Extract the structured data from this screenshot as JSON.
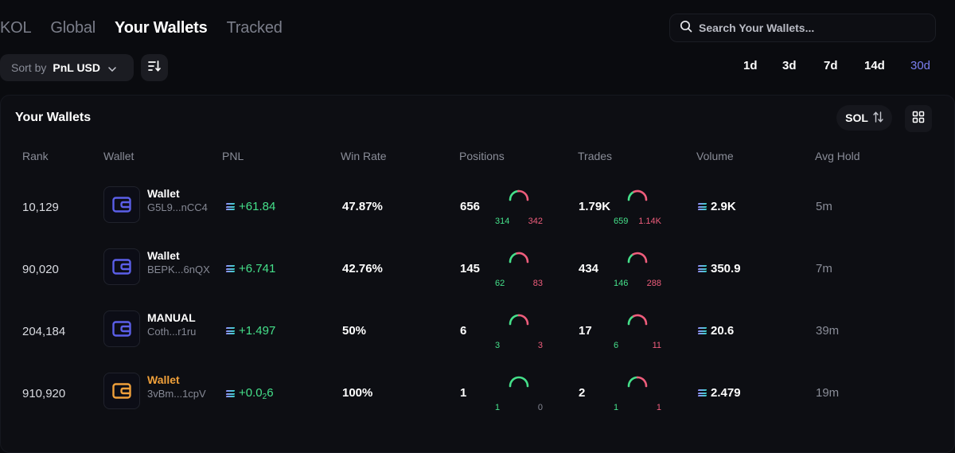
{
  "nav": {
    "tabs": [
      "KOL",
      "Global",
      "Your Wallets",
      "Tracked"
    ],
    "active": "Your Wallets"
  },
  "search": {
    "placeholder": "Search Your Wallets..."
  },
  "sort": {
    "label": "Sort by",
    "value": "PnL USD"
  },
  "periods": [
    "1d",
    "3d",
    "7d",
    "14d",
    "30d"
  ],
  "active_period": "30d",
  "panel": {
    "title": "Your Wallets",
    "currency_label": "SOL"
  },
  "columns": [
    "Rank",
    "Wallet",
    "PNL",
    "Win Rate",
    "Positions",
    "Trades",
    "Volume",
    "Avg Hold"
  ],
  "rows": [
    {
      "rank": "10,129",
      "name": "Wallet",
      "address": "G5L9...nCC4",
      "pnl": "+61.84",
      "win_rate": "47.87%",
      "positions": "656",
      "positions_win": "314",
      "positions_loss": "342",
      "trades": "1.79K",
      "trades_win": "659",
      "trades_loss": "1.14K",
      "volume": "2.9K",
      "avg_hold": "5m",
      "icon_color": "#5b5fe8",
      "name_color": "#ffffff"
    },
    {
      "rank": "90,020",
      "name": "Wallet",
      "address": "BEPK...6nQX",
      "pnl": "+6.741",
      "win_rate": "42.76%",
      "positions": "145",
      "positions_win": "62",
      "positions_loss": "83",
      "trades": "434",
      "trades_win": "146",
      "trades_loss": "288",
      "volume": "350.9",
      "avg_hold": "7m",
      "icon_color": "#5b5fe8",
      "name_color": "#ffffff"
    },
    {
      "rank": "204,184",
      "name": "MANUAL",
      "address": "Coth...r1ru",
      "pnl": "+1.497",
      "win_rate": "50%",
      "positions": "6",
      "positions_win": "3",
      "positions_loss": "3",
      "trades": "17",
      "trades_win": "6",
      "trades_loss": "11",
      "volume": "20.6",
      "avg_hold": "39m",
      "icon_color": "#5b5fe8",
      "name_color": "#ffffff"
    },
    {
      "rank": "910,920",
      "name": "Wallet",
      "address": "3vBm...1cpV",
      "pnl_main": "+0.0",
      "pnl_sub": "2",
      "pnl_tail": "6",
      "win_rate": "100%",
      "positions": "1",
      "positions_win": "1",
      "positions_loss": "0",
      "trades": "2",
      "trades_win": "1",
      "trades_loss": "1",
      "volume": "2.479",
      "avg_hold": "19m",
      "icon_color": "#f0a03a",
      "name_color": "#f0a03a"
    }
  ]
}
